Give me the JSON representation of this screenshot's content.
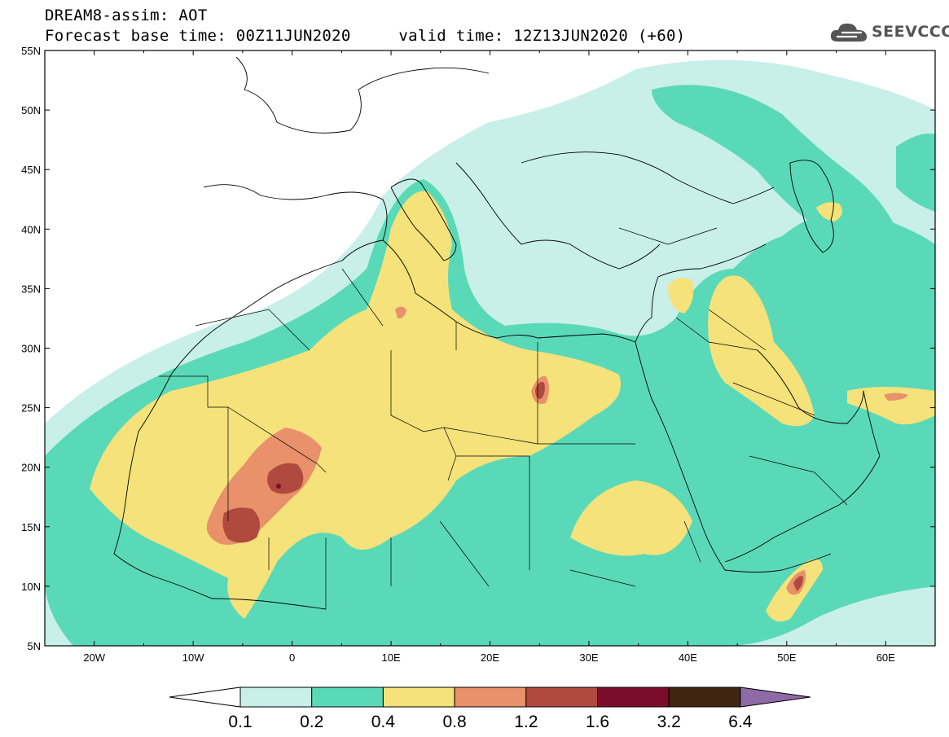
{
  "header": {
    "title_line1": "DREAM8-assim: AOT",
    "title_line2": "Forecast base time: 00Z11JUN2020     valid time: 12Z13JUN2020 (+60)"
  },
  "logo": {
    "text": "SEEVCCC",
    "icon": "cloud-logo-icon"
  },
  "map": {
    "lat_labels": [
      "55N",
      "50N",
      "45N",
      "40N",
      "35N",
      "30N",
      "25N",
      "20N",
      "15N",
      "10N",
      "5N"
    ],
    "lon_labels": [
      "20W",
      "10W",
      "0",
      "10E",
      "20E",
      "30E",
      "40E",
      "50E",
      "60E"
    ]
  },
  "colorbar": {
    "labels": [
      "0.1",
      "0.2",
      "0.4",
      "0.8",
      "1.2",
      "1.6",
      "3.2",
      "6.4"
    ],
    "colors": [
      "#ffffff",
      "#c8f0e8",
      "#5ad9b8",
      "#f5e27a",
      "#e8916a",
      "#b04a3e",
      "#7a0e2a",
      "#3e2612",
      "#8e6aa6"
    ]
  },
  "legend_colors": {
    "very_low": "#c8f0e8",
    "low": "#5ad9b8",
    "medium": "#f5e27a",
    "high": "#e8916a",
    "very_high": "#b04a3e",
    "extreme": "#7a0e2a"
  }
}
